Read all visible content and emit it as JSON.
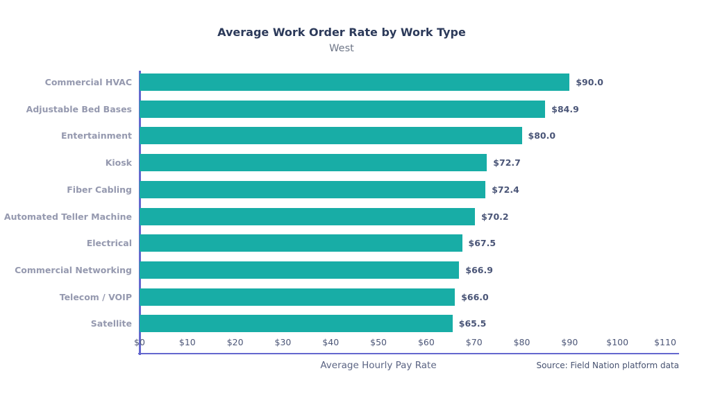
{
  "chart": {
    "title": "Average Work Order Rate by Work Type",
    "subtitle": "West",
    "xlabel": "Average Hourly Pay Rate",
    "source": "Source: Field Nation platform data"
  },
  "chart_data": {
    "type": "bar",
    "orientation": "horizontal",
    "title": "Average Work Order Rate by Work Type",
    "subtitle": "West",
    "xlabel": "Average Hourly Pay Rate",
    "source": "Source: Field Nation platform data",
    "categories": [
      "Commercial HVAC",
      "Adjustable Bed Bases",
      "Entertainment",
      "Kiosk",
      "Fiber Cabling",
      "Automated Teller Machine",
      "Electrical",
      "Commercial Networking",
      "Telecom / VOIP",
      "Satellite"
    ],
    "values": [
      90.0,
      84.9,
      80.0,
      72.7,
      72.4,
      70.2,
      67.5,
      66.9,
      66.0,
      65.5
    ],
    "value_labels": [
      "$90.0",
      "$84.9",
      "$80.0",
      "$72.7",
      "$72.4",
      "$70.2",
      "$67.5",
      "$66.9",
      "$66.0",
      "$65.5"
    ],
    "xlim": [
      0,
      110
    ],
    "xticks": [
      "$0",
      "$10",
      "$20",
      "$30",
      "$40",
      "$50",
      "$60",
      "$70",
      "$80",
      "$90",
      "$100",
      "$110"
    ],
    "grid": false,
    "legend": false,
    "bar_color": "#18ADA6",
    "axis_color": "#6467CE"
  },
  "colors": {
    "background": "#FFFFFF",
    "title": "#2C3A5A",
    "subtitle": "#6E7687",
    "category_label": "#9599AF",
    "value_label": "#4A5577",
    "tick_label": "#4C5677",
    "bar": "#18ADA6",
    "axis": "#6467CE"
  }
}
